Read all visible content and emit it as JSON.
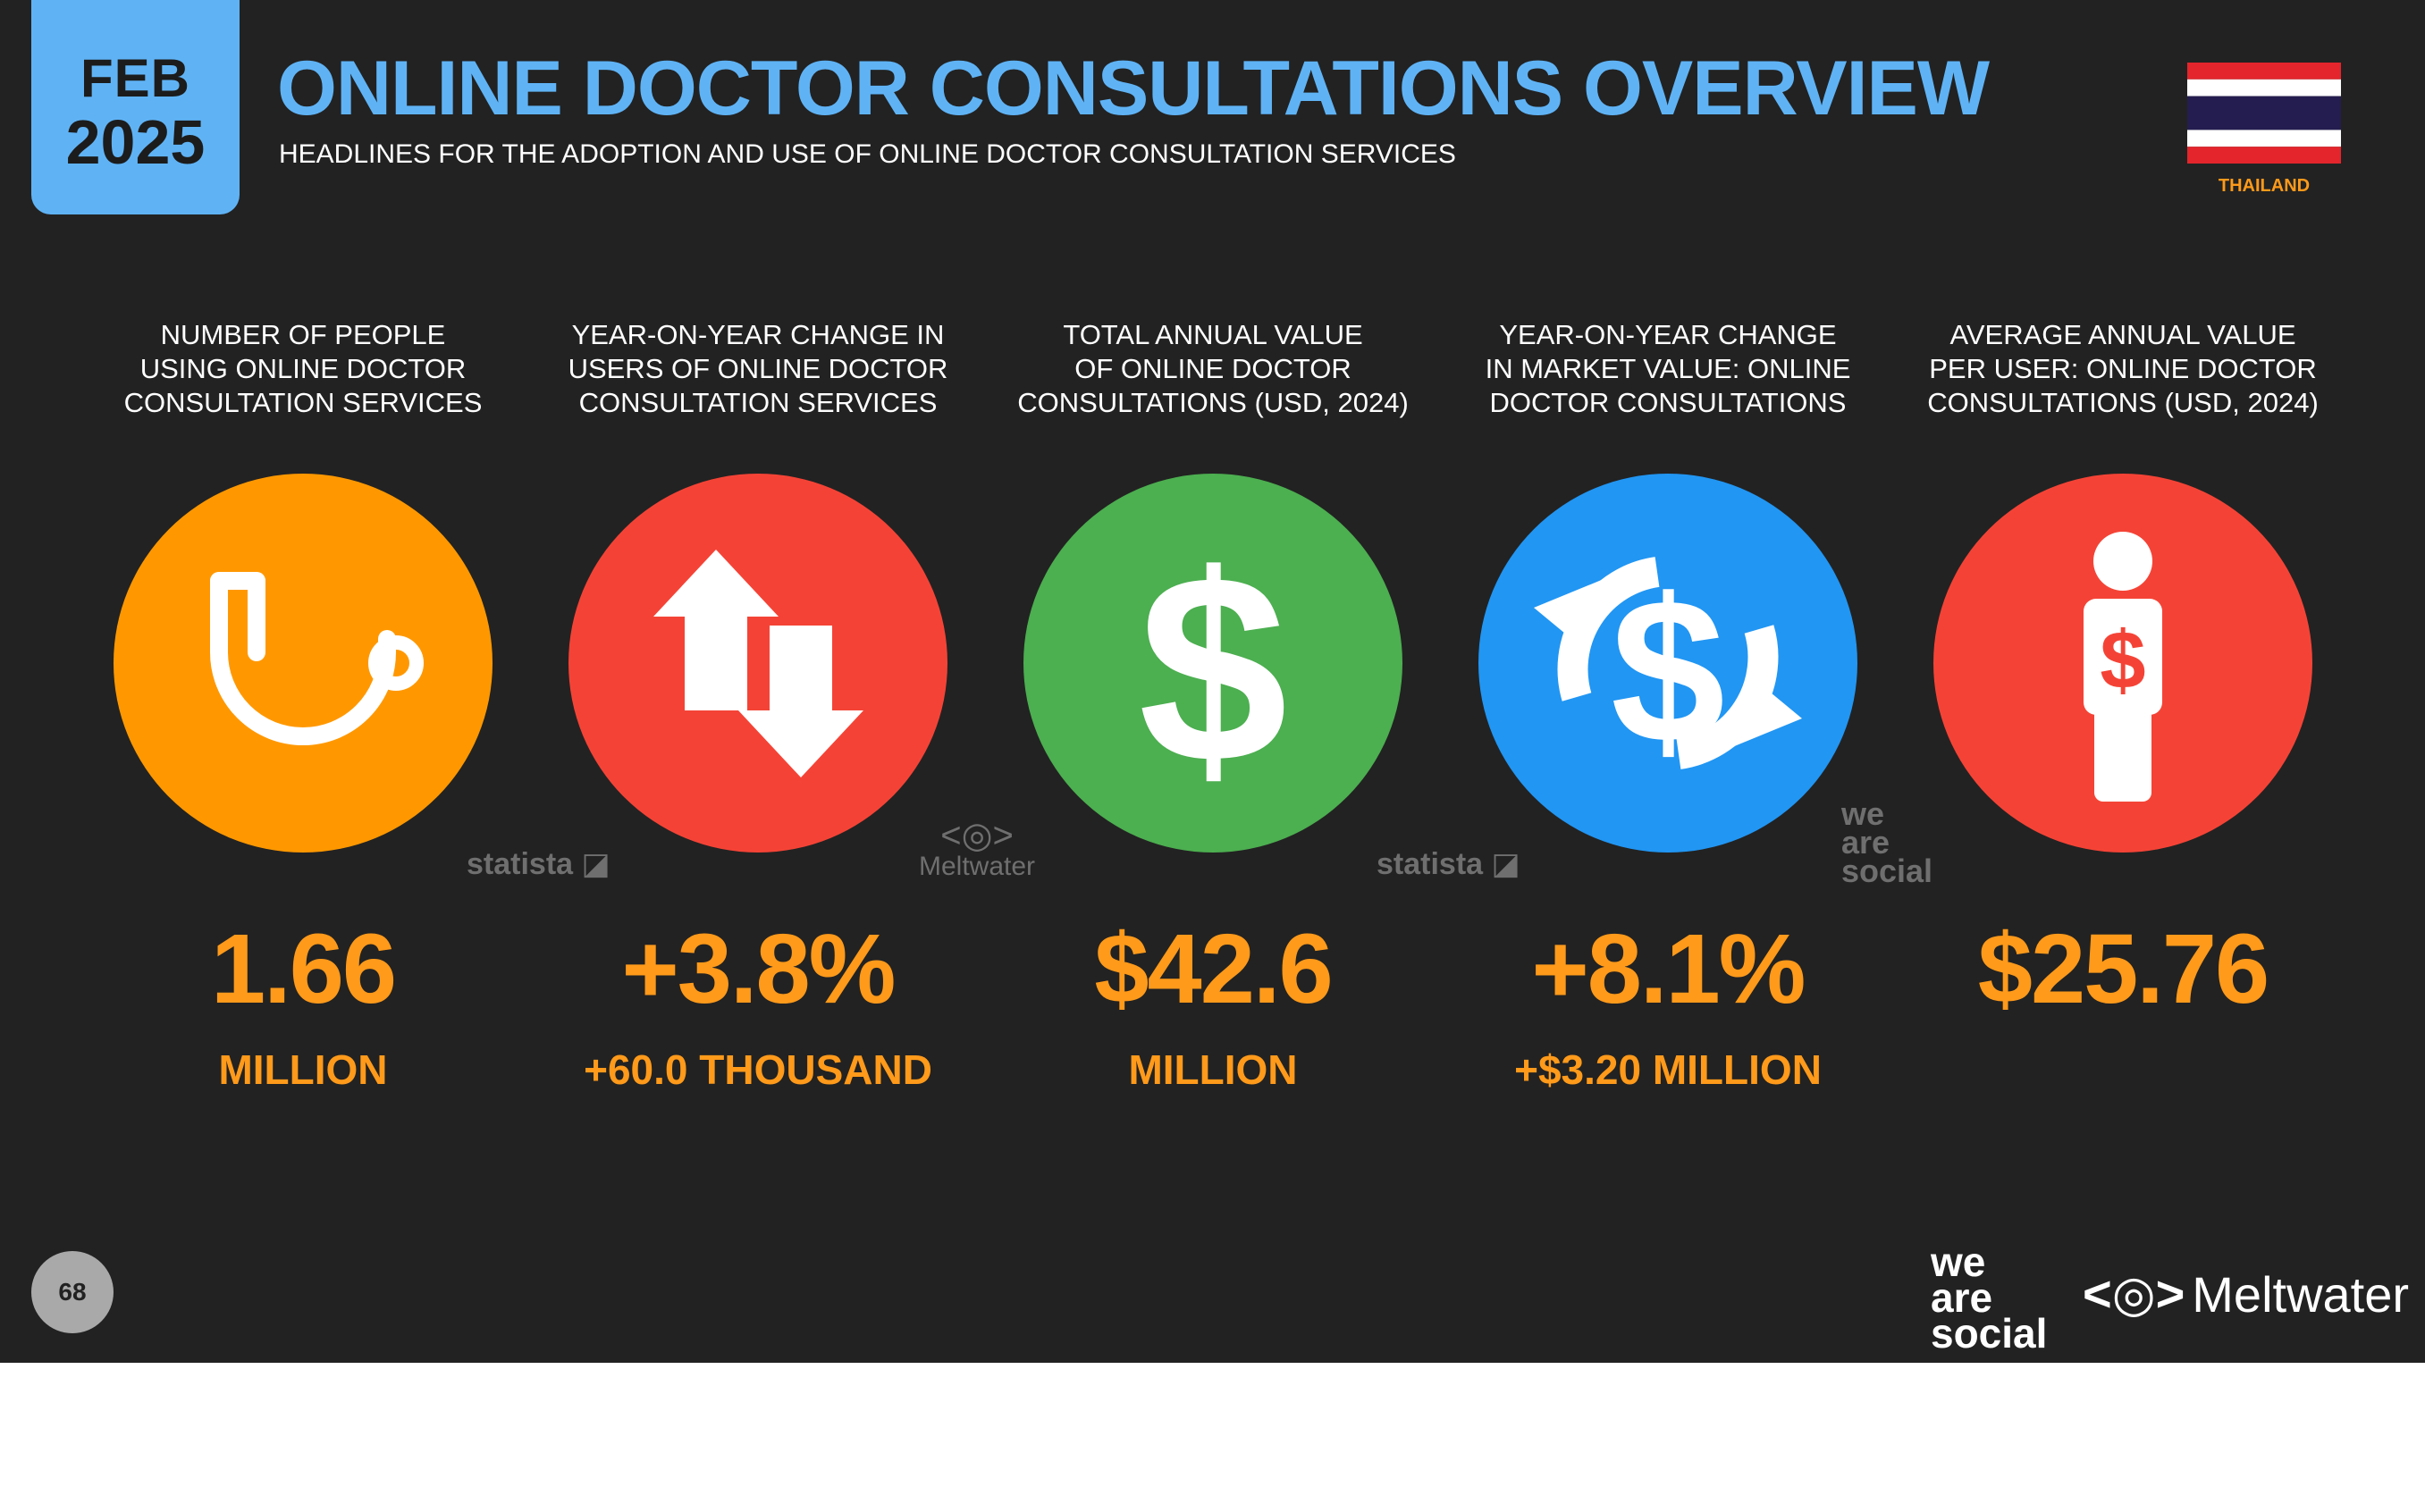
{
  "header": {
    "month": "FEB",
    "year": "2025",
    "title": "ONLINE DOCTOR CONSULTATIONS OVERVIEW",
    "subtitle": "HEADLINES FOR THE ADOPTION AND USE OF ONLINE DOCTOR CONSULTATION SERVICES",
    "country": "THAILAND"
  },
  "stats": [
    {
      "label": "NUMBER OF PEOPLE\nUSING ONLINE DOCTOR\nCONSULTATION SERVICES",
      "value": "1.66",
      "sub": "MILLION",
      "icon": "stethoscope-icon",
      "color": "#ff9800"
    },
    {
      "label": "YEAR-ON-YEAR CHANGE IN\nUSERS OF ONLINE DOCTOR\nCONSULTATION SERVICES",
      "value": "+3.8%",
      "sub": "+60.0 THOUSAND",
      "icon": "up-down-arrows-icon",
      "color": "#f44336"
    },
    {
      "label": "TOTAL ANNUAL VALUE\nOF ONLINE DOCTOR\nCONSULTATIONS (USD, 2024)",
      "value": "$42.6",
      "sub": "MILLION",
      "icon": "dollar-sign-icon",
      "color": "#4caf50"
    },
    {
      "label": "YEAR-ON-YEAR CHANGE\nIN MARKET VALUE: ONLINE\nDOCTOR CONSULTATIONS",
      "value": "+8.1%",
      "sub": "+$3.20 MILLION",
      "icon": "dollar-cycle-icon",
      "color": "#2196f3"
    },
    {
      "label": "AVERAGE ANNUAL VALUE\nPER USER: ONLINE DOCTOR\nCONSULTATIONS (USD, 2024)",
      "value": "$25.76",
      "sub": "",
      "icon": "person-dollar-icon",
      "color": "#f44336"
    }
  ],
  "sources": {
    "statista_1": "statista",
    "meltwater": "Meltwater",
    "statista_2": "statista",
    "wearesocial": [
      "we",
      "are",
      "social"
    ]
  },
  "footer": {
    "page_number": "68",
    "logo_wearesocial": [
      "we",
      "are",
      "social"
    ],
    "logo_meltwater": "Meltwater"
  }
}
